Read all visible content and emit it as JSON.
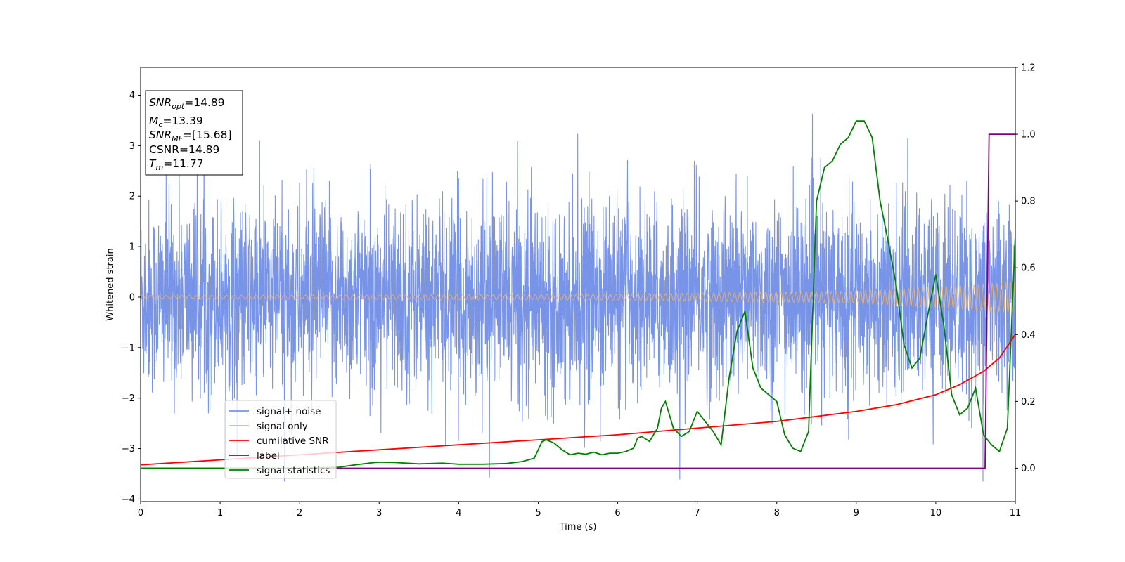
{
  "chart_data": {
    "type": "line",
    "xlabel": "Time (s)",
    "ylabel": "Whitened strain",
    "xlim": [
      0,
      11
    ],
    "ylim": [
      -4.05,
      4.55
    ],
    "y2lim": [
      -0.1,
      1.2
    ],
    "xticks": [
      "0",
      "1",
      "2",
      "3",
      "4",
      "5",
      "6",
      "7",
      "8",
      "9",
      "10",
      "11"
    ],
    "yticks": [
      "−4",
      "−3",
      "−2",
      "−1",
      "0",
      "1",
      "2",
      "3",
      "4"
    ],
    "y2ticks": [
      "0.0",
      "0.2",
      "0.4",
      "0.6",
      "0.8",
      "1.0",
      "1.2"
    ],
    "grid": false,
    "legend_position": "lower-left",
    "annotation": [
      {
        "main": "SNR",
        "sub": "opt",
        "rest": "=14.89"
      },
      {
        "main": "M",
        "sub": "c",
        "rest": "=13.39"
      },
      {
        "main": "SNR",
        "sub": "MF",
        "rest": "=[15.68]"
      },
      {
        "main": "CSNR",
        "sub": "",
        "rest": "=14.89"
      },
      {
        "main": "T",
        "sub": "m",
        "rest": "=11.77"
      }
    ],
    "series": [
      {
        "name": "signal+ noise",
        "axis": "left",
        "color": "#7894e8",
        "kind": "noise",
        "description_values": {
          "amplitude_std": 0.95,
          "max_peak": 4.15,
          "min_peak": -3.65
        }
      },
      {
        "name": "signal only",
        "axis": "left",
        "color": "#f0b36a",
        "kind": "chirp",
        "amplitude_points": {
          "x": [
            0,
            6,
            9,
            10,
            11
          ],
          "y": [
            0.03,
            0.06,
            0.12,
            0.2,
            0.3
          ]
        }
      },
      {
        "name": "cumilative SNR",
        "axis": "right",
        "color": "#ff0000",
        "x": [
          0,
          1,
          2,
          3,
          4,
          5,
          6,
          7,
          8,
          9,
          9.5,
          10,
          10.3,
          10.6,
          10.8,
          11
        ],
        "y": [
          0.01,
          0.025,
          0.04,
          0.055,
          0.07,
          0.085,
          0.1,
          0.12,
          0.14,
          0.17,
          0.19,
          0.22,
          0.25,
          0.29,
          0.33,
          0.4
        ]
      },
      {
        "name": "label",
        "axis": "right",
        "color": "#800080",
        "x": [
          0,
          10.62,
          10.67,
          11
        ],
        "y": [
          0,
          0,
          1,
          1
        ]
      },
      {
        "name": "signal statistics",
        "axis": "right",
        "color": "#008000",
        "x": [
          0,
          1,
          2,
          2.5,
          2.7,
          2.8,
          2.9,
          3.0,
          3.2,
          3.5,
          3.8,
          4.0,
          4.3,
          4.6,
          4.8,
          4.95,
          5.05,
          5.1,
          5.2,
          5.3,
          5.4,
          5.5,
          5.6,
          5.7,
          5.8,
          5.9,
          6.0,
          6.1,
          6.2,
          6.25,
          6.3,
          6.4,
          6.5,
          6.55,
          6.6,
          6.7,
          6.8,
          6.9,
          7.0,
          7.1,
          7.2,
          7.3,
          7.4,
          7.5,
          7.6,
          7.7,
          7.8,
          7.9,
          8.0,
          8.1,
          8.2,
          8.3,
          8.4,
          8.5,
          8.6,
          8.7,
          8.8,
          8.9,
          9.0,
          9.1,
          9.2,
          9.3,
          9.4,
          9.5,
          9.6,
          9.7,
          9.8,
          9.9,
          10.0,
          10.1,
          10.2,
          10.3,
          10.4,
          10.5,
          10.6,
          10.7,
          10.8,
          10.9,
          11.0
        ],
        "y": [
          0,
          0,
          0,
          0.003,
          0.01,
          0.013,
          0.016,
          0.018,
          0.017,
          0.013,
          0.015,
          0.012,
          0.012,
          0.014,
          0.02,
          0.03,
          0.08,
          0.085,
          0.075,
          0.055,
          0.04,
          0.045,
          0.042,
          0.048,
          0.04,
          0.045,
          0.045,
          0.05,
          0.06,
          0.09,
          0.095,
          0.08,
          0.12,
          0.18,
          0.2,
          0.12,
          0.095,
          0.11,
          0.17,
          0.14,
          0.11,
          0.07,
          0.27,
          0.41,
          0.47,
          0.3,
          0.24,
          0.22,
          0.2,
          0.1,
          0.06,
          0.05,
          0.11,
          0.8,
          0.9,
          0.92,
          0.97,
          0.99,
          1.04,
          1.04,
          0.99,
          0.8,
          0.68,
          0.55,
          0.37,
          0.3,
          0.33,
          0.46,
          0.58,
          0.43,
          0.22,
          0.16,
          0.18,
          0.24,
          0.1,
          0.07,
          0.05,
          0.12,
          0.7
        ]
      }
    ]
  }
}
